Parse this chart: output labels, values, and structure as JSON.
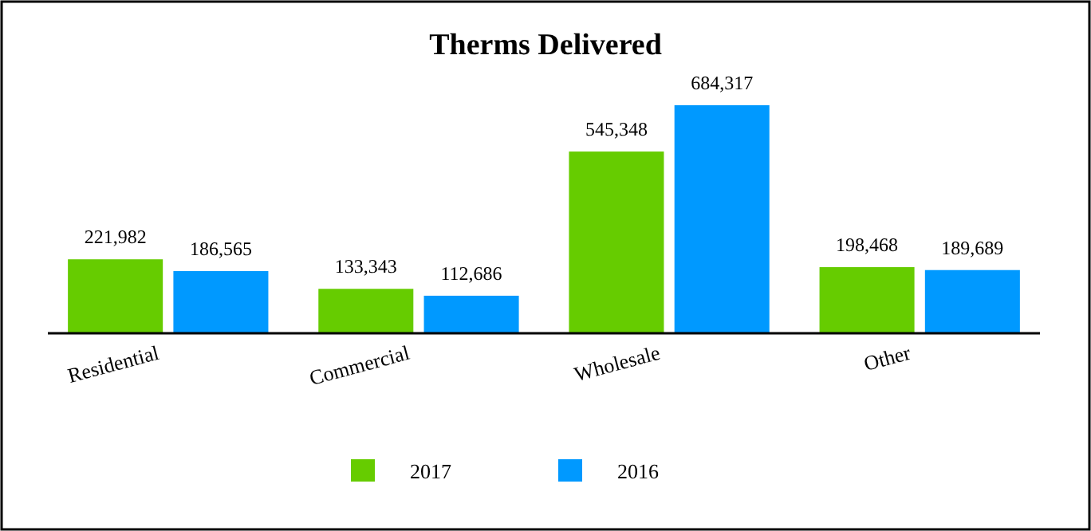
{
  "chart_data": {
    "type": "bar",
    "title": "Therms Delivered",
    "categories": [
      "Residential",
      "Commercial",
      "Wholesale",
      "Other"
    ],
    "series": [
      {
        "name": "2017",
        "color": "#66cc00",
        "values": [
          221982,
          133343,
          545348,
          198468
        ],
        "value_labels": [
          "221,982",
          "133,343",
          "545,348",
          "198,468"
        ]
      },
      {
        "name": "2016",
        "color": "#0099ff",
        "values": [
          186565,
          112686,
          684317,
          189689
        ],
        "value_labels": [
          "186,565",
          "112,686",
          "684,317",
          "189,689"
        ]
      }
    ],
    "legend": "bottom",
    "grid": false
  }
}
